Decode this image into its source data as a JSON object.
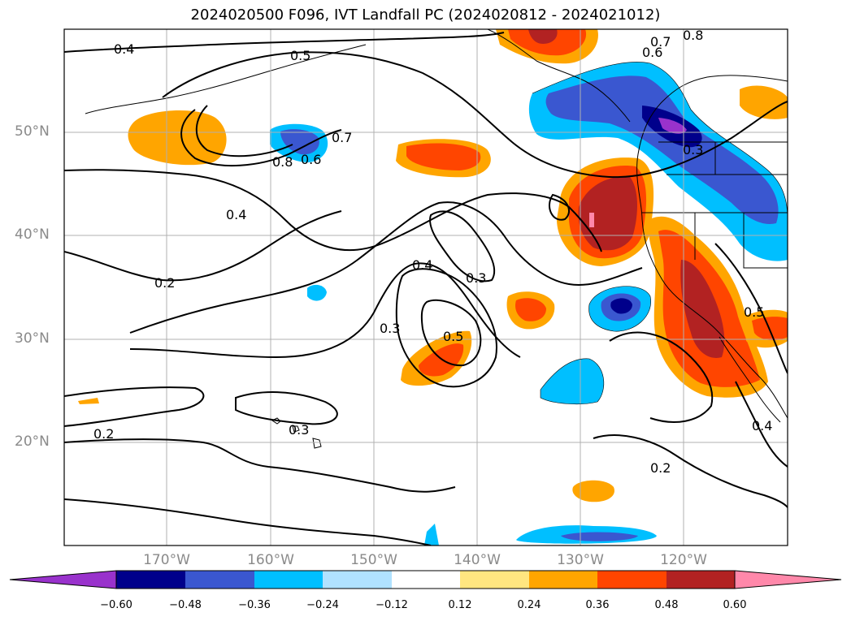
{
  "title": "2024020500 F096, IVT Landfall PC (2024020812 - 2024021012)",
  "lat_labels": [
    "50°N",
    "40°N",
    "30°N",
    "20°N"
  ],
  "lon_labels": [
    "170°W",
    "160°W",
    "150°W",
    "140°W",
    "130°W",
    "120°W"
  ],
  "contour_labels": [
    "0.4",
    "0.5",
    "0.8",
    "0.7",
    "0.6",
    "0.7",
    "0.8",
    "0.6",
    "0.4",
    "0.2",
    "0.4",
    "0.3",
    "0.3",
    "0.5",
    "0.2",
    "0.3",
    "0.2",
    "0.4",
    "0.3",
    "0.5"
  ],
  "colorbar": {
    "ticks": [
      "−0.60",
      "−0.48",
      "−0.36",
      "−0.24",
      "−0.12",
      "0.12",
      "0.24",
      "0.36",
      "0.48",
      "0.60"
    ],
    "colors": [
      "#9932cc",
      "#00008b",
      "#3a57d0",
      "#00bfff",
      "#b0e2ff",
      "#ffffff",
      "#ffe680",
      "#ffa500",
      "#ff4500",
      "#b22222",
      "#ff88aa"
    ]
  }
}
